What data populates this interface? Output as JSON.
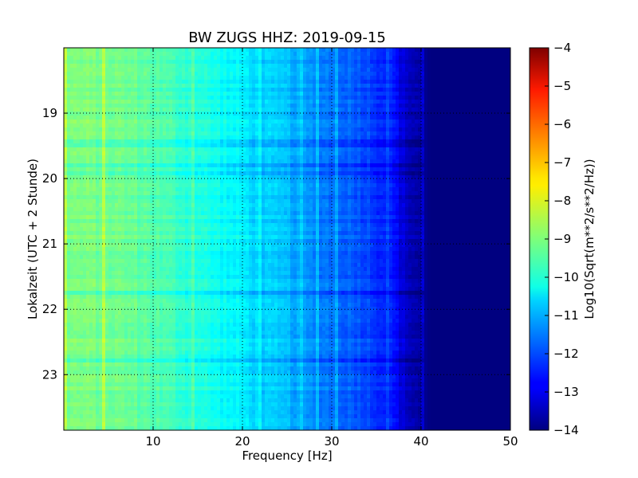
{
  "chart_data": {
    "type": "heatmap",
    "title": "BW ZUGS HHZ: 2019-09-15",
    "xlabel": "Frequency [Hz]",
    "ylabel": "Lokalzeit (UTC + 2 Stunde)",
    "xlim": [
      0,
      50
    ],
    "ylim": [
      18.0,
      23.85
    ],
    "xticks": [
      10,
      20,
      30,
      40,
      50
    ],
    "yticks": [
      19,
      20,
      21,
      22,
      23
    ],
    "grid": true,
    "colormap": "jet",
    "colorbar": {
      "label": "Log10(Sqrt(m**2/s**2/Hz))",
      "range": [
        -14,
        -4
      ],
      "ticks": [
        -4,
        -5,
        -6,
        -7,
        -8,
        -9,
        -10,
        -11,
        -12,
        -13,
        -14
      ]
    },
    "profile": {
      "frequency_hz": [
        0,
        5,
        9,
        12,
        15,
        18,
        20,
        22,
        25,
        27,
        30,
        33,
        35,
        37,
        38,
        40,
        41,
        50
      ],
      "level": [
        -9.0,
        -9.1,
        -9.3,
        -9.6,
        -9.9,
        -10.2,
        -10.4,
        -10.7,
        -10.9,
        -11.3,
        -11.6,
        -11.9,
        -12.2,
        -12.6,
        -13.2,
        -13.7,
        -14.0,
        -14.0
      ]
    }
  }
}
